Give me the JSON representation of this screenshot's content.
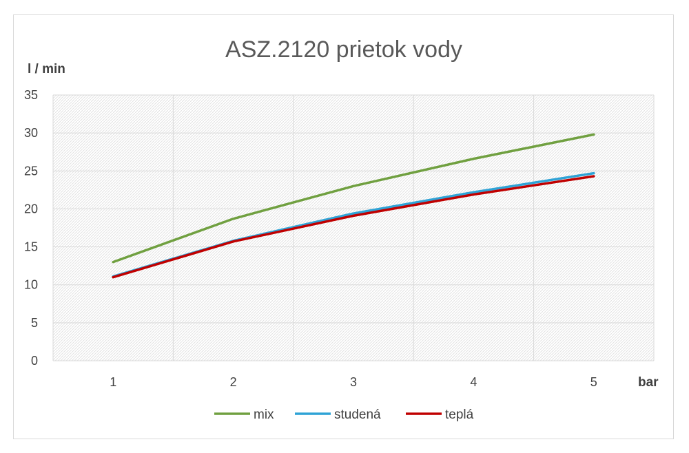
{
  "chart_data": {
    "type": "line",
    "title": "ASZ.2120 prietok vody",
    "xlabel": "bar",
    "ylabel": "l / min",
    "x": [
      1,
      2,
      3,
      4,
      5
    ],
    "ylim": [
      0,
      35
    ],
    "yticks": [
      0,
      5,
      10,
      15,
      20,
      25,
      30,
      35
    ],
    "grid": true,
    "legend": "bottom",
    "series": [
      {
        "name": "mix",
        "values": [
          13.0,
          18.7,
          23.0,
          26.6,
          29.8
        ],
        "color": "#70a040"
      },
      {
        "name": "studená",
        "values": [
          11.1,
          15.8,
          19.4,
          22.2,
          24.7
        ],
        "color": "#2fa3d6"
      },
      {
        "name": "teplá",
        "values": [
          11.0,
          15.7,
          19.1,
          21.9,
          24.3
        ],
        "color": "#c00000"
      }
    ]
  }
}
